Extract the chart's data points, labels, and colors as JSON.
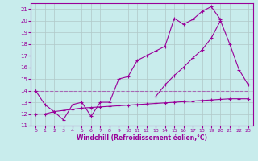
{
  "xlabel": "Windchill (Refroidissement éolien,°C)",
  "bg_color": "#c8ecec",
  "grid_color": "#b0c8c8",
  "line_color": "#990099",
  "xlim": [
    -0.5,
    23.5
  ],
  "ylim": [
    11,
    21.5
  ],
  "xticks": [
    0,
    1,
    2,
    3,
    4,
    5,
    6,
    7,
    8,
    9,
    10,
    11,
    12,
    13,
    14,
    15,
    16,
    17,
    18,
    19,
    20,
    21,
    22,
    23
  ],
  "yticks": [
    11,
    12,
    13,
    14,
    15,
    16,
    17,
    18,
    19,
    20,
    21
  ],
  "line1_x": [
    0,
    1,
    2,
    3,
    4,
    5,
    6,
    7,
    8,
    9,
    10,
    11,
    12,
    13,
    14,
    15,
    16,
    17,
    18,
    19,
    20,
    21,
    22,
    23
  ],
  "line1_y": [
    12.0,
    12.0,
    12.2,
    12.3,
    12.4,
    12.5,
    12.55,
    12.6,
    12.65,
    12.7,
    12.75,
    12.8,
    12.85,
    12.9,
    12.95,
    13.0,
    13.05,
    13.1,
    13.15,
    13.2,
    13.25,
    13.3,
    13.3,
    13.3
  ],
  "line2_x": [
    0,
    1,
    2,
    3,
    4,
    5,
    6,
    7,
    8,
    9,
    10,
    11,
    12,
    13,
    14,
    15,
    16,
    17,
    18,
    19,
    20
  ],
  "line2_y": [
    14.0,
    12.8,
    12.2,
    11.5,
    12.8,
    13.0,
    11.8,
    13.0,
    13.0,
    15.0,
    15.2,
    16.6,
    17.0,
    17.4,
    17.8,
    20.2,
    19.7,
    20.1,
    20.8,
    21.2,
    20.1
  ],
  "line3_x": [
    0,
    13,
    14,
    15,
    16,
    17,
    18,
    19,
    20,
    21,
    22,
    23
  ],
  "line3_y": [
    14.0,
    13.5,
    14.5,
    15.3,
    16.0,
    16.8,
    17.5,
    18.5,
    20.0,
    18.0,
    15.8,
    14.5
  ]
}
